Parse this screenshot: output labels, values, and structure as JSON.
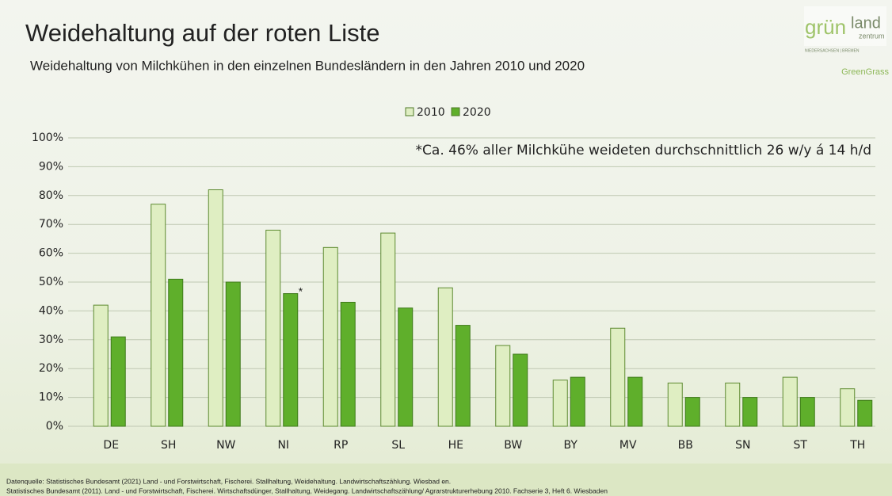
{
  "chart_data": {
    "type": "bar",
    "title": "Weidehaltung auf der roten Liste",
    "subtitle": "Weidehaltung von Milchkühen in den einzelnen Bundesländern in den Jahren 2010 und 2020",
    "annotations": [
      "*Ca. 46% aller Milchkühe weideten durchschnittlich 26 w/y á 14 h/d",
      "*"
    ],
    "categories": [
      "DE",
      "SH",
      "NW",
      "NI",
      "RP",
      "SL",
      "HE",
      "BW",
      "BY",
      "MV",
      "BB",
      "SN",
      "ST",
      "TH"
    ],
    "series": [
      {
        "name": "2010",
        "color": "#dfeec2",
        "values": [
          42,
          77,
          82,
          68,
          62,
          67,
          48,
          28,
          16,
          34,
          15,
          15,
          17,
          13
        ]
      },
      {
        "name": "2020",
        "color": "#5faf2b",
        "values": [
          31,
          51,
          50,
          46,
          43,
          41,
          35,
          25,
          17,
          17,
          10,
          10,
          10,
          9
        ]
      }
    ],
    "ylim": [
      0,
      100
    ],
    "yticks": [
      {
        "value": 0,
        "label": "0%"
      },
      {
        "value": 10,
        "label": "10%"
      },
      {
        "value": 20,
        "label": "20%"
      },
      {
        "value": 30,
        "label": "30%"
      },
      {
        "value": 40,
        "label": "40%"
      },
      {
        "value": 50,
        "label": "50%"
      },
      {
        "value": 60,
        "label": "60%"
      },
      {
        "value": 70,
        "label": "70%"
      },
      {
        "value": 80,
        "label": "80%"
      },
      {
        "value": 90,
        "label": "90%"
      },
      {
        "value": 100,
        "label": "100%"
      }
    ],
    "grid": true,
    "legend": "top"
  },
  "source": [
    "Datenquelle:  Statistisches Bundesamt (2021) Land - und Forstwirtschaft, Fischerei. Stallhaltung, Weidehaltung. Landwirtschaftszählung. Wiesbad en.",
    "Statistisches Bundesamt (2011). Land - und Forstwirtschaft, Fischerei. Wirtschaftsdünger, Stallhaltung, Weidegang. Landwirtschaftszählung/ Agrarstrukturerhebung 2010. Fachserie 3, Heft 6. Wiesbaden"
  ],
  "logo": {
    "brand": "grün",
    "brand2": "land",
    "brand3": "zentrum",
    "region": "NIEDERSACHSEN | BREMEN",
    "partner": "GreenGrass"
  }
}
